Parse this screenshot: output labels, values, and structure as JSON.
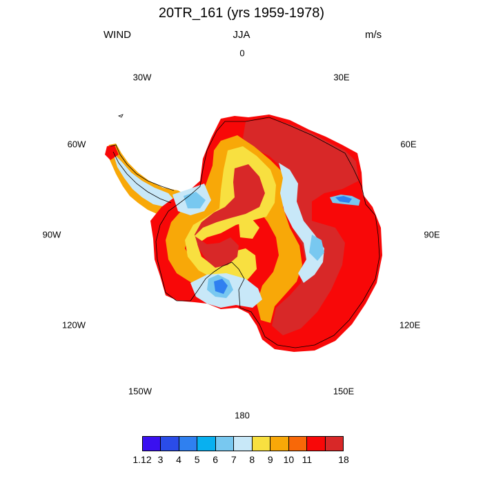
{
  "title": "20TR_161 (yrs 1959-1978)",
  "left_label": "WIND",
  "center_label": "JJA",
  "right_label": "m/s",
  "longitudes": {
    "lon_0": "0",
    "lon_30e": "30E",
    "lon_60e": "60E",
    "lon_90e": "90E",
    "lon_120e": "120E",
    "lon_150e": "150E",
    "lon_180": "180",
    "lon_150w": "150W",
    "lon_120w": "120W",
    "lon_90w": "90W",
    "lon_60w": "60W",
    "lon_30w": "30W"
  },
  "colorbar": {
    "colors": [
      "#3a10f0",
      "#2a4ce8",
      "#2f80f0",
      "#08b0f0",
      "#78c8f0",
      "#c8e8f8",
      "#f8e040",
      "#f8a808",
      "#f86808",
      "#f80808",
      "#d82828"
    ],
    "labels": [
      "1.12",
      "3",
      "4",
      "5",
      "6",
      "7",
      "8",
      "9",
      "10",
      "11",
      "18"
    ]
  },
  "map_colors": {
    "coast": "#000000"
  }
}
